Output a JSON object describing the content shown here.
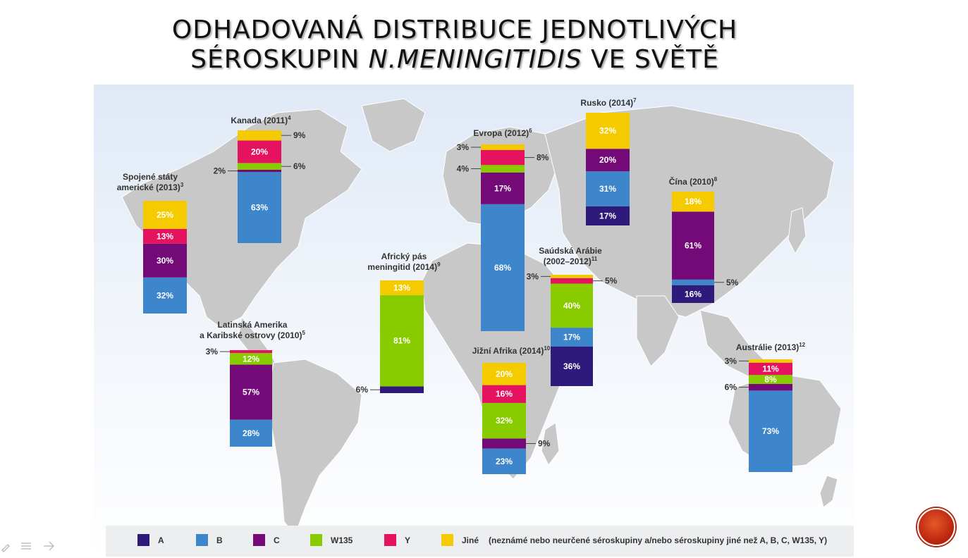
{
  "slide": {
    "title_line1": "ODHADOVANÁ DISTRIBUCE JEDNOTLIVÝCH",
    "title_line2_a": "SÉROSKUPIN ",
    "title_line2_b": "N.MENINGITIDIS",
    "title_line2_c": " VE SVĚTĚ"
  },
  "legend": {
    "items": [
      {
        "label": "A",
        "color": "#2e1a7a"
      },
      {
        "label": "B",
        "color": "#3d86cc"
      },
      {
        "label": "C",
        "color": "#730a78"
      },
      {
        "label": "W135",
        "color": "#88cc00"
      },
      {
        "label": "Y",
        "color": "#e5135f"
      },
      {
        "label": "Jiné",
        "color": "#f5cb00"
      }
    ],
    "note": "(neznámé nebo neurčené séroskupiny a/nebo séroskupiny jiné než A, B, C, W135, Y)"
  },
  "chart_data": {
    "type": "bar",
    "stacked": true,
    "series_order": [
      "A",
      "B",
      "C",
      "W135",
      "Y",
      "Jiné"
    ],
    "regions": [
      {
        "label": "Kanada (2011)",
        "sup": "4",
        "values": {
          "A": 0,
          "B": 63,
          "C": 2,
          "W135": 6,
          "Y": 20,
          "Jiné": 9
        },
        "labels": {
          "B": "63%",
          "Y": "20%"
        },
        "callouts": [
          {
            "text": "9%",
            "side": "right",
            "of": "Jiné"
          },
          {
            "text": "2%",
            "side": "left",
            "of": "C"
          },
          {
            "text": "6%",
            "side": "right",
            "of": "W135"
          }
        ]
      },
      {
        "label": "Spojené státy americké (2013)",
        "label_line1": "Spojené státy",
        "label_line2": "americké (2013)",
        "sup": "3",
        "values": {
          "A": 0,
          "B": 32,
          "C": 30,
          "W135": 0,
          "Y": 13,
          "Jiné": 25
        },
        "labels": {
          "Jiné": "25%",
          "Y": "13%",
          "C": "30%",
          "B": "32%"
        },
        "callouts": []
      },
      {
        "label": "Latinská Amerika a Karibské ostrovy (2010)",
        "label_line1": "Latinská Amerika",
        "label_line2": "a Karibské ostrovy (2010)",
        "sup": "5",
        "values": {
          "A": 0,
          "B": 28,
          "C": 57,
          "W135": 12,
          "Y": 3,
          "Jiné": 0
        },
        "labels": {
          "W135": "12%",
          "C": "57%",
          "B": "28%"
        },
        "callouts": [
          {
            "text": "3%",
            "side": "left",
            "of": "Y"
          }
        ]
      },
      {
        "label": "Africký pás meningitid (2014)",
        "label_line1": "Africký pás",
        "label_line2": "meningitid (2014)",
        "sup": "9",
        "values": {
          "A": 6,
          "B": 0,
          "C": 0,
          "W135": 81,
          "Y": 0,
          "Jiné": 13
        },
        "labels": {
          "Jiné": "13%",
          "W135": "81%"
        },
        "callouts": [
          {
            "text": "6%",
            "side": "left",
            "of": "A"
          }
        ]
      },
      {
        "label": "Evropa (2012)",
        "sup": "6",
        "values": {
          "A": 0,
          "B": 68,
          "C": 17,
          "W135": 4,
          "Y": 8,
          "Jiné": 3
        },
        "labels": {
          "C": "17%",
          "B": "68%"
        },
        "callouts": [
          {
            "text": "3%",
            "side": "left",
            "of": "Jiné"
          },
          {
            "text": "4%",
            "side": "left",
            "of": "W135"
          },
          {
            "text": "8%",
            "side": "right",
            "of": "Y"
          }
        ]
      },
      {
        "label": "Jižní Afrika (2014)",
        "sup": "10",
        "values": {
          "A": 0,
          "B": 23,
          "C": 9,
          "W135": 32,
          "Y": 16,
          "Jiné": 20
        },
        "labels": {
          "Jiné": "20%",
          "Y": "16%",
          "W135": "32%",
          "B": "23%"
        },
        "callouts": [
          {
            "text": "9%",
            "side": "right",
            "of": "C"
          }
        ]
      },
      {
        "label": "Saúdská Arábie (2002–2012)",
        "label_line1": "Saúdská Arábie",
        "label_line2": "(2002–2012)",
        "sup": "11",
        "values": {
          "A": 36,
          "B": 17,
          "C": 0,
          "W135": 40,
          "Y": 5,
          "Jiné": 3
        },
        "labels": {
          "W135": "40%",
          "B": "17%",
          "A": "36%"
        },
        "callouts": [
          {
            "text": "3%",
            "side": "left",
            "of": "Jiné"
          },
          {
            "text": "5%",
            "side": "right",
            "of": "Y"
          }
        ]
      },
      {
        "label": "Rusko (2014)",
        "sup": "7",
        "values": {
          "A": 17,
          "B": 31,
          "C": 20,
          "W135": 0,
          "Y": 0,
          "Jiné": 32
        },
        "labels": {
          "Jiné": "32%",
          "C": "20%",
          "B": "31%",
          "A": "17%"
        },
        "callouts": []
      },
      {
        "label": "Čína (2010)",
        "sup": "8",
        "values": {
          "A": 16,
          "B": 5,
          "C": 61,
          "W135": 0,
          "Y": 0,
          "Jiné": 18
        },
        "labels": {
          "Jiné": "18%",
          "C": "61%",
          "A": "16%"
        },
        "callouts": [
          {
            "text": "5%",
            "side": "right",
            "of": "B"
          }
        ]
      },
      {
        "label": "Austrálie (2013)",
        "sup": "12",
        "values": {
          "A": 0,
          "B": 73,
          "C": 6,
          "W135": 8,
          "Y": 11,
          "Jiné": 3
        },
        "labels": {
          "Y": "11%",
          "W135": "8%",
          "B": "73%"
        },
        "callouts": [
          {
            "text": "3%",
            "side": "left",
            "of": "Jiné"
          },
          {
            "text": "6%",
            "side": "left",
            "of": "C"
          }
        ]
      }
    ]
  }
}
